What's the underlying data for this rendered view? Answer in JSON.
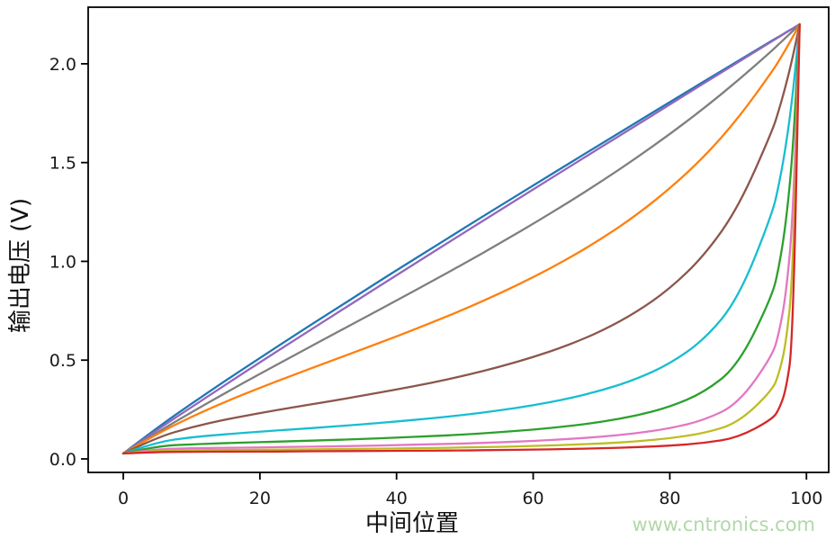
{
  "watermark": {
    "text": "www.cntronics.com",
    "color": "#b0d8a8"
  },
  "chart_data": {
    "type": "line",
    "title": "",
    "xlabel": "中间位置",
    "ylabel": "输出电压 (V)",
    "xlim": [
      -5,
      103
    ],
    "ylim": [
      -0.07,
      2.28
    ],
    "grid": false,
    "legend": "none",
    "axis_color": "#000000",
    "xticks": [
      {
        "label": "0",
        "v": 0
      },
      {
        "label": "20",
        "v": 20
      },
      {
        "label": "40",
        "v": 40
      },
      {
        "label": "60",
        "v": 60
      },
      {
        "label": "80",
        "v": 80
      },
      {
        "label": "100",
        "v": 100
      }
    ],
    "yticks": [
      {
        "label": "0.0",
        "v": 0.0
      },
      {
        "label": "0.5",
        "v": 0.5
      },
      {
        "label": "1.0",
        "v": 1.0
      },
      {
        "label": "1.5",
        "v": 1.5
      },
      {
        "label": "2.0",
        "v": 2.0
      }
    ],
    "x": [
      0,
      5,
      10,
      15,
      20,
      25,
      30,
      35,
      40,
      45,
      50,
      55,
      60,
      65,
      70,
      75,
      80,
      85,
      90,
      95,
      96,
      97,
      98,
      99
    ],
    "series": [
      {
        "name": "curve-blue",
        "color": "#1f77b4",
        "values": [
          0.028,
          0.159,
          0.28,
          0.397,
          0.511,
          0.624,
          0.735,
          0.845,
          0.955,
          1.063,
          1.171,
          1.278,
          1.384,
          1.49,
          1.596,
          1.701,
          1.806,
          1.911,
          2.014,
          2.118,
          2.138,
          2.159,
          2.179,
          2.2
        ]
      },
      {
        "name": "curve-purple",
        "color": "#9467bd",
        "values": [
          0.028,
          0.148,
          0.263,
          0.376,
          0.489,
          0.6,
          0.71,
          0.82,
          0.93,
          1.039,
          1.148,
          1.256,
          1.364,
          1.472,
          1.58,
          1.686,
          1.794,
          1.902,
          2.008,
          2.115,
          2.136,
          2.158,
          2.178,
          2.2
        ]
      },
      {
        "name": "curve-gray",
        "color": "#7f7f7f",
        "values": [
          0.028,
          0.135,
          0.237,
          0.335,
          0.431,
          0.524,
          0.617,
          0.709,
          0.802,
          0.896,
          0.991,
          1.089,
          1.19,
          1.295,
          1.405,
          1.521,
          1.644,
          1.775,
          1.916,
          2.068,
          2.101,
          2.133,
          2.166,
          2.2
        ]
      },
      {
        "name": "curve-orange",
        "color": "#ff7f0e",
        "values": [
          0.028,
          0.128,
          0.214,
          0.29,
          0.36,
          0.426,
          0.491,
          0.555,
          0.62,
          0.688,
          0.759,
          0.836,
          0.919,
          1.011,
          1.114,
          1.231,
          1.368,
          1.528,
          1.723,
          1.962,
          2.017,
          2.075,
          2.136,
          2.2
        ]
      },
      {
        "name": "curve-brown",
        "color": "#8c564b",
        "values": [
          0.028,
          0.11,
          0.161,
          0.2,
          0.232,
          0.262,
          0.29,
          0.32,
          0.351,
          0.384,
          0.422,
          0.465,
          0.515,
          0.574,
          0.647,
          0.74,
          0.861,
          1.027,
          1.27,
          1.66,
          1.769,
          1.893,
          2.035,
          2.2
        ]
      },
      {
        "name": "curve-cyan",
        "color": "#17becf",
        "values": [
          0.028,
          0.086,
          0.11,
          0.125,
          0.138,
          0.15,
          0.162,
          0.175,
          0.189,
          0.205,
          0.223,
          0.245,
          0.271,
          0.304,
          0.346,
          0.402,
          0.481,
          0.602,
          0.808,
          1.241,
          1.392,
          1.585,
          1.842,
          2.2
        ]
      },
      {
        "name": "curve-green",
        "color": "#2ca02c",
        "values": [
          0.028,
          0.065,
          0.074,
          0.08,
          0.085,
          0.09,
          0.095,
          0.101,
          0.108,
          0.115,
          0.124,
          0.135,
          0.148,
          0.165,
          0.187,
          0.218,
          0.263,
          0.336,
          0.472,
          0.825,
          0.975,
          1.194,
          1.546,
          2.2
        ]
      },
      {
        "name": "curve-pink",
        "color": "#e377c2",
        "values": [
          0.028,
          0.05,
          0.054,
          0.056,
          0.058,
          0.061,
          0.063,
          0.066,
          0.07,
          0.074,
          0.078,
          0.084,
          0.091,
          0.1,
          0.112,
          0.129,
          0.154,
          0.196,
          0.278,
          0.521,
          0.639,
          0.831,
          1.201,
          2.2
        ]
      },
      {
        "name": "curve-olive",
        "color": "#bcbd22",
        "values": [
          0.028,
          0.042,
          0.044,
          0.045,
          0.046,
          0.048,
          0.049,
          0.051,
          0.053,
          0.055,
          0.058,
          0.061,
          0.066,
          0.071,
          0.078,
          0.088,
          0.104,
          0.13,
          0.182,
          0.347,
          0.433,
          0.584,
          0.913,
          2.2
        ]
      },
      {
        "name": "curve-red",
        "color": "#d62728",
        "values": [
          0.028,
          0.035,
          0.036,
          0.037,
          0.037,
          0.038,
          0.039,
          0.04,
          0.041,
          0.042,
          0.043,
          0.045,
          0.047,
          0.05,
          0.054,
          0.059,
          0.067,
          0.08,
          0.108,
          0.201,
          0.252,
          0.348,
          0.585,
          2.2
        ]
      }
    ]
  }
}
